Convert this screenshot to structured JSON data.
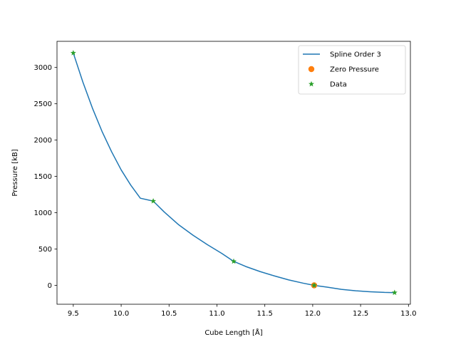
{
  "chart_data": {
    "type": "line",
    "title": "",
    "xlabel": "Cube Length [Å]",
    "ylabel": "Pressure [kB]",
    "xlim": [
      9.33,
      13.02
    ],
    "ylim": [
      -260,
      3360
    ],
    "xticks": [
      9.5,
      10.0,
      10.5,
      11.0,
      11.5,
      12.0,
      12.5,
      13.0
    ],
    "xtick_labels": [
      "9.5",
      "10.0",
      "10.5",
      "11.0",
      "11.5",
      "12.0",
      "12.5",
      "13.0"
    ],
    "yticks": [
      0,
      500,
      1000,
      1500,
      2000,
      2500,
      3000
    ],
    "ytick_labels": [
      "0",
      "500",
      "1000",
      "1500",
      "2000",
      "2500",
      "3000"
    ],
    "grid": false,
    "legend_position": "top-right",
    "series": [
      {
        "name": "Spline Order 3",
        "kind": "line",
        "color": "#1f77b4",
        "x": [
          9.5,
          9.6,
          9.7,
          9.8,
          9.9,
          10.0,
          10.1,
          10.2,
          10.335,
          10.45,
          10.6,
          10.75,
          10.9,
          11.05,
          11.175,
          11.3,
          11.45,
          11.6,
          11.75,
          11.9,
          12.015,
          12.15,
          12.3,
          12.45,
          12.6,
          12.75,
          12.855
        ],
        "y": [
          3200,
          2800,
          2440,
          2120,
          1840,
          1590,
          1380,
          1200,
          1160,
          1010,
          835,
          690,
          560,
          440,
          330,
          260,
          190,
          130,
          75,
          30,
          0,
          -25,
          -55,
          -75,
          -88,
          -97,
          -100
        ]
      },
      {
        "name": "Zero Pressure",
        "kind": "marker-circle",
        "color": "#ff7f0e",
        "x": [
          12.015
        ],
        "y": [
          0
        ]
      },
      {
        "name": "Data",
        "kind": "marker-star",
        "color": "#2ca02c",
        "x": [
          9.5,
          10.335,
          11.175,
          12.015,
          12.855
        ],
        "y": [
          3200,
          1160,
          330,
          0,
          -100
        ]
      }
    ]
  }
}
